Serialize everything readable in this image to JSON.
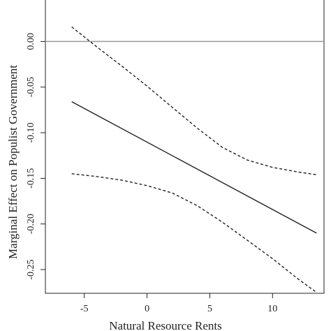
{
  "chart_data": {
    "type": "line",
    "title": "",
    "xlabel": "Natural Resource Rents",
    "ylabel": "Marginal Effect on Populist Government",
    "xlim": [
      -8.1,
      14.1
    ],
    "ylim": [
      -0.276,
      0.047
    ],
    "xticks": [
      -5,
      0,
      5,
      10
    ],
    "xtick_labels": [
      "-5",
      "0",
      "5",
      "10"
    ],
    "yticks": [
      0.0,
      -0.05,
      -0.1,
      -0.15,
      -0.2,
      -0.25
    ],
    "ytick_labels": [
      "0.00",
      "-0.05",
      "-0.10",
      "-0.15",
      "-0.20",
      "-0.25"
    ],
    "grid": false,
    "legend": "none",
    "reference_line": {
      "y": 0.0,
      "color": "#999999"
    },
    "series": [
      {
        "role": "estimate",
        "style": "solid",
        "color": "#222222",
        "x": [
          -6,
          13.5
        ],
        "y": [
          -0.066,
          -0.21
        ]
      },
      {
        "role": "upper_ci",
        "style": "dashed",
        "color": "#222222",
        "x": [
          -6,
          -4,
          -2,
          0,
          2,
          4,
          6,
          8,
          10,
          12,
          13.5
        ],
        "y": [
          0.016,
          -0.006,
          -0.027,
          -0.049,
          -0.072,
          -0.095,
          -0.116,
          -0.13,
          -0.138,
          -0.143,
          -0.146
        ]
      },
      {
        "role": "lower_ci",
        "style": "dashed",
        "color": "#222222",
        "x": [
          -6,
          -4,
          -2,
          0,
          2,
          4,
          6,
          8,
          10,
          12,
          13.5
        ],
        "y": [
          -0.145,
          -0.148,
          -0.152,
          -0.158,
          -0.166,
          -0.18,
          -0.198,
          -0.218,
          -0.238,
          -0.26,
          -0.275
        ]
      }
    ]
  }
}
